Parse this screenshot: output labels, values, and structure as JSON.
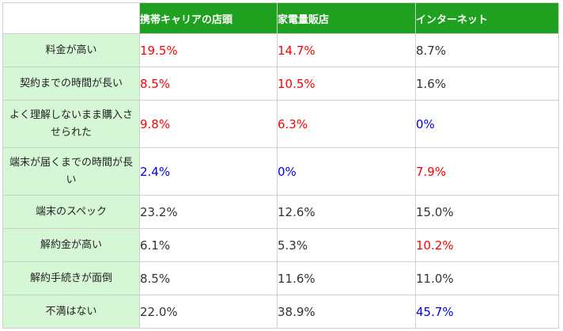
{
  "columns": [
    "携帯キャリアの店頭",
    "家電量販店",
    "インターネット"
  ],
  "rows": [
    {
      "label": "料金が高い",
      "values": [
        "19.5%",
        "14.7%",
        "8.7%"
      ],
      "colors": [
        "red",
        "red",
        "normal"
      ]
    },
    {
      "label": "契約までの時間が長い",
      "values": [
        "8.5%",
        "10.5%",
        "1.6%"
      ],
      "colors": [
        "red",
        "red",
        "normal"
      ]
    },
    {
      "label": "よく理解しないまま購入させられた",
      "values": [
        "9.8%",
        "6.3%",
        "0%"
      ],
      "colors": [
        "red",
        "red",
        "blue"
      ]
    },
    {
      "label": "端末が届くまでの時間が長い",
      "values": [
        "2.4%",
        "0%",
        "7.9%"
      ],
      "colors": [
        "blue",
        "blue",
        "red"
      ]
    },
    {
      "label": "端末のスペック",
      "values": [
        "23.2%",
        "12.6%",
        "15.0%"
      ],
      "colors": [
        "normal",
        "normal",
        "normal"
      ]
    },
    {
      "label": "解約金が高い",
      "values": [
        "6.1%",
        "5.3%",
        "10.2%"
      ],
      "colors": [
        "normal",
        "normal",
        "red"
      ]
    },
    {
      "label": "解約手続きが面倒",
      "values": [
        "8.5%",
        "11.6%",
        "11.0%"
      ],
      "colors": [
        "normal",
        "normal",
        "normal"
      ]
    },
    {
      "label": "不満はない",
      "values": [
        "22.0%",
        "38.9%",
        "45.7%"
      ],
      "colors": [
        "normal",
        "normal",
        "blue"
      ]
    }
  ],
  "colors": {
    "header_bg": "#1fa01f",
    "rowhead_bg": "#d6f7d6",
    "red": "#ff0000",
    "blue": "#0000ee",
    "normal": "#333333"
  }
}
